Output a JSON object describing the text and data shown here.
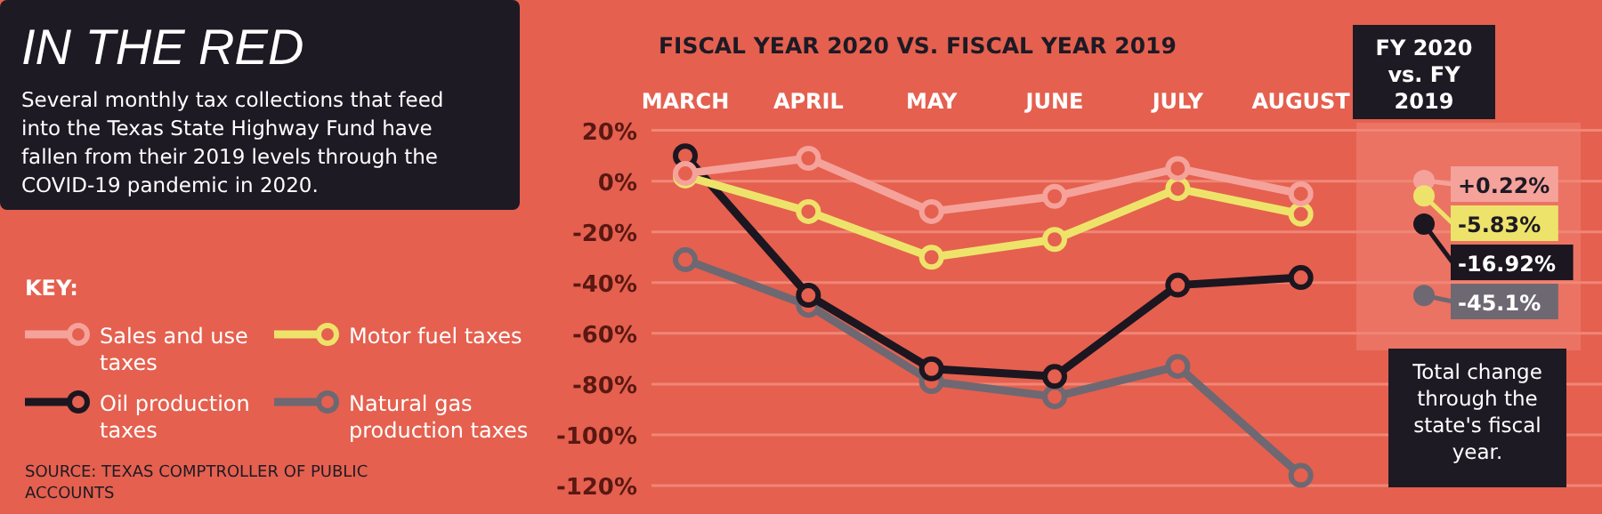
{
  "chart_data": {
    "type": "line",
    "title": "IN THE RED",
    "subtitle": "Several monthly tax collections that feed into the Texas State Highway Fund have fallen from their 2019 levels through the COVID-19 pandemic in 2020.",
    "legend_title": "KEY:",
    "legend": "left",
    "marker": "circle",
    "grid": "y",
    "categories": [
      "MARCH",
      "APRIL",
      "MAY",
      "JUNE",
      "JULY",
      "AUGUST",
      "FY 2020 vs. FY 2019"
    ],
    "ylim": [
      -120,
      20
    ],
    "yticks": [
      {
        "value": 20,
        "label": "20%"
      },
      {
        "value": 0,
        "label": "0%"
      },
      {
        "value": -20,
        "label": "-20%"
      },
      {
        "value": -40,
        "label": "-40%"
      },
      {
        "value": -60,
        "label": "-60%"
      },
      {
        "value": -80,
        "label": "-80%"
      },
      {
        "value": -100,
        "label": "-100%"
      },
      {
        "value": -120,
        "label": "-120%"
      }
    ],
    "series": [
      {
        "name": "Sales and use taxes",
        "color": "#f5a29b",
        "values": [
          3,
          9,
          -12,
          -6,
          5,
          -5,
          null
        ]
      },
      {
        "name": "Motor fuel taxes",
        "color": "#eee36a",
        "values": [
          2,
          -12,
          -30,
          -23,
          -3,
          -13,
          null
        ]
      },
      {
        "name": "Oil production taxes",
        "color": "#1c1620",
        "values": [
          10,
          -45,
          -74,
          -77,
          -41,
          -38,
          null
        ]
      },
      {
        "name": "Natural gas production taxes",
        "color": "#6e6872",
        "values": [
          -31,
          -49,
          -79,
          -85,
          -73,
          -116,
          null
        ]
      },
      {
        "type": "scatter",
        "color": "#f5a29b",
        "x": [
          "FY 2020 vs. FY 2019"
        ],
        "values": [
          0.22
        ],
        "value_labels": [
          "+0.22%"
        ]
      },
      {
        "type": "scatter",
        "color": "#eee36a",
        "x": [
          "FY 2020 vs. FY 2019"
        ],
        "values": [
          -5.83
        ],
        "value_labels": [
          "-5.83%"
        ]
      },
      {
        "type": "scatter",
        "color": "#1c1620",
        "x": [
          "FY 2020 vs. FY 2019"
        ],
        "values": [
          -16.92
        ],
        "value_labels": [
          "-16.92%"
        ]
      },
      {
        "type": "scatter",
        "color": "#6e6872",
        "x": [
          "FY 2020 vs. FY 2019"
        ],
        "values": [
          -45.1
        ],
        "value_labels": [
          "-45.1%"
        ]
      }
    ],
    "annotations": [
      "FISCAL YEAR 2020 VS. FISCAL YEAR 2019",
      "Total change through the state's fiscal year.",
      "SOURCE: TEXAS COMPTROLLER OF PUBLIC ACCOUNTS"
    ]
  }
}
